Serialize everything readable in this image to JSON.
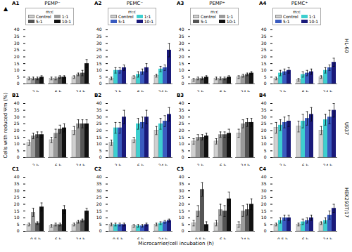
{
  "ylabel": "Cells with reduced Ψm (%)",
  "xlabel": "Microcarrier/cell incubation (h)",
  "annotations": [
    "▲"
  ],
  "chart_data": [
    {
      "type": "bar",
      "title": "PEMP⁻",
      "annotations": [
        "A1"
      ],
      "categories": [
        "2 h",
        "6 h",
        "24 h"
      ],
      "series": [
        {
          "name": "Control",
          "color": "#d0d0d0",
          "values": [
            4,
            4,
            5
          ],
          "errors": [
            1,
            1,
            1
          ]
        },
        {
          "name": "1:1",
          "color": "#9a9a9a",
          "values": [
            4,
            4,
            7
          ],
          "errors": [
            1,
            1,
            1
          ]
        },
        {
          "name": "5:1",
          "color": "#555555",
          "values": [
            4,
            5,
            8
          ],
          "errors": [
            1,
            1,
            2
          ]
        },
        {
          "name": "10:1",
          "color": "#111111",
          "values": [
            5,
            5,
            15
          ],
          "errors": [
            1,
            1,
            3
          ]
        }
      ],
      "ylim": [
        0,
        40
      ],
      "yticks": [
        0,
        5,
        10,
        15,
        20,
        25,
        30,
        35,
        40
      ],
      "grid": false,
      "legend": "upper left",
      "legend_title": "m:c"
    },
    {
      "type": "bar",
      "title": "PEMC⁻",
      "annotations": [
        "A2"
      ],
      "categories": [
        "2 h",
        "6 h",
        "24 h"
      ],
      "series": [
        {
          "name": "Control",
          "color": "#d0d0d0",
          "values": [
            4,
            5,
            6
          ],
          "errors": [
            1,
            1,
            1
          ]
        },
        {
          "name": "1:1",
          "color": "#3ecfcf",
          "values": [
            10,
            7,
            11
          ],
          "errors": [
            2,
            2,
            2
          ]
        },
        {
          "name": "5:1",
          "color": "#3a5bbf",
          "values": [
            10,
            9,
            12
          ],
          "errors": [
            2,
            2,
            2
          ]
        },
        {
          "name": "10:1",
          "color": "#1a1a7a",
          "values": [
            12,
            12,
            25
          ],
          "errors": [
            2,
            3,
            5
          ]
        }
      ],
      "ylim": [
        0,
        40
      ],
      "yticks": [
        0,
        5,
        10,
        15,
        20,
        25,
        30,
        35,
        40
      ],
      "grid": false,
      "legend": "upper left",
      "legend_title": "m:c"
    },
    {
      "type": "bar",
      "title": "PEMP⁺",
      "annotations": [
        "A3"
      ],
      "categories": [
        "2 h",
        "6 h",
        "24 h"
      ],
      "series": [
        {
          "name": "Control",
          "color": "#d0d0d0",
          "values": [
            3,
            4,
            5
          ],
          "errors": [
            1,
            1,
            1
          ]
        },
        {
          "name": "1:1",
          "color": "#9a9a9a",
          "values": [
            4,
            4,
            6
          ],
          "errors": [
            1,
            1,
            1
          ]
        },
        {
          "name": "5:1",
          "color": "#555555",
          "values": [
            4,
            4,
            7
          ],
          "errors": [
            1,
            1,
            1
          ]
        },
        {
          "name": "10:1",
          "color": "#111111",
          "values": [
            5,
            5,
            8
          ],
          "errors": [
            1,
            1,
            1
          ]
        }
      ],
      "ylim": [
        0,
        40
      ],
      "yticks": [
        0,
        5,
        10,
        15,
        20,
        25,
        30,
        35,
        40
      ],
      "grid": false,
      "legend": "upper left",
      "legend_title": "m:c"
    },
    {
      "type": "bar",
      "title": "PEMC⁺",
      "annotations": [
        "A4",
        "HL-60"
      ],
      "categories": [
        "2 h",
        "6 h",
        "24 h"
      ],
      "series": [
        {
          "name": "Control",
          "color": "#d0d0d0",
          "values": [
            4,
            3,
            5
          ],
          "errors": [
            1,
            1,
            1
          ]
        },
        {
          "name": "1:1",
          "color": "#3ecfcf",
          "values": [
            8,
            7,
            10
          ],
          "errors": [
            2,
            2,
            2
          ]
        },
        {
          "name": "5:1",
          "color": "#3a5bbf",
          "values": [
            9,
            8,
            12
          ],
          "errors": [
            2,
            2,
            2
          ]
        },
        {
          "name": "10:1",
          "color": "#1a1a7a",
          "values": [
            10,
            9,
            16
          ],
          "errors": [
            2,
            2,
            3
          ]
        }
      ],
      "ylim": [
        0,
        40
      ],
      "yticks": [
        0,
        5,
        10,
        15,
        20,
        25,
        30,
        35,
        40
      ],
      "grid": false,
      "legend": "upper left",
      "legend_title": "m:c"
    },
    {
      "type": "bar",
      "annotations": [
        "B1"
      ],
      "categories": [
        "2 h",
        "6 h",
        "24 h"
      ],
      "series": [
        {
          "name": "Control",
          "color": "#d0d0d0",
          "values": [
            11,
            13,
            20
          ],
          "errors": [
            2,
            2,
            3
          ]
        },
        {
          "name": "1:1",
          "color": "#9a9a9a",
          "values": [
            16,
            18,
            25
          ],
          "errors": [
            2,
            3,
            3
          ]
        },
        {
          "name": "5:1",
          "color": "#555555",
          "values": [
            17,
            21,
            25
          ],
          "errors": [
            2,
            3,
            3
          ]
        },
        {
          "name": "10:1",
          "color": "#111111",
          "values": [
            17,
            22,
            25
          ],
          "errors": [
            2,
            3,
            3
          ]
        }
      ],
      "ylim": [
        0,
        40
      ],
      "yticks": [
        0,
        5,
        10,
        15,
        20,
        25,
        30,
        35,
        40
      ],
      "grid": false
    },
    {
      "type": "bar",
      "annotations": [
        "B2"
      ],
      "categories": [
        "2 h",
        "6 h",
        "24 h"
      ],
      "series": [
        {
          "name": "Control",
          "color": "#d0d0d0",
          "values": [
            11,
            13,
            20
          ],
          "errors": [
            2,
            2,
            3
          ]
        },
        {
          "name": "1:1",
          "color": "#3ecfcf",
          "values": [
            22,
            25,
            25
          ],
          "errors": [
            4,
            4,
            4
          ]
        },
        {
          "name": "5:1",
          "color": "#3a5bbf",
          "values": [
            22,
            26,
            27
          ],
          "errors": [
            4,
            4,
            4
          ]
        },
        {
          "name": "10:1",
          "color": "#1a1a7a",
          "values": [
            30,
            30,
            32
          ],
          "errors": [
            5,
            5,
            5
          ]
        }
      ],
      "ylim": [
        0,
        40
      ],
      "yticks": [
        0,
        5,
        10,
        15,
        20,
        25,
        30,
        35,
        40
      ],
      "grid": false
    },
    {
      "type": "bar",
      "annotations": [
        "B3"
      ],
      "categories": [
        "2 h",
        "6 h",
        "24 h"
      ],
      "series": [
        {
          "name": "Control",
          "color": "#d0d0d0",
          "values": [
            12,
            12,
            18
          ],
          "errors": [
            2,
            2,
            3
          ]
        },
        {
          "name": "1:1",
          "color": "#9a9a9a",
          "values": [
            15,
            17,
            25
          ],
          "errors": [
            2,
            2,
            3
          ]
        },
        {
          "name": "5:1",
          "color": "#555555",
          "values": [
            15,
            17,
            26
          ],
          "errors": [
            2,
            2,
            3
          ]
        },
        {
          "name": "10:1",
          "color": "#111111",
          "values": [
            16,
            18,
            26
          ],
          "errors": [
            2,
            3,
            3
          ]
        }
      ],
      "ylim": [
        0,
        40
      ],
      "yticks": [
        0,
        5,
        10,
        15,
        20,
        25,
        30,
        35,
        40
      ],
      "grid": false
    },
    {
      "type": "bar",
      "annotations": [
        "B4",
        "U937"
      ],
      "categories": [
        "2 h",
        "6 h",
        "24 h"
      ],
      "series": [
        {
          "name": "Control",
          "color": "#d0d0d0",
          "values": [
            22,
            23,
            20
          ],
          "errors": [
            4,
            4,
            3
          ]
        },
        {
          "name": "1:1",
          "color": "#3ecfcf",
          "values": [
            24,
            27,
            28
          ],
          "errors": [
            4,
            5,
            4
          ]
        },
        {
          "name": "5:1",
          "color": "#3a5bbf",
          "values": [
            26,
            29,
            30
          ],
          "errors": [
            4,
            5,
            5
          ]
        },
        {
          "name": "10:1",
          "color": "#1a1a7a",
          "values": [
            27,
            32,
            35
          ],
          "errors": [
            4,
            5,
            5
          ]
        }
      ],
      "ylim": [
        0,
        40
      ],
      "yticks": [
        0,
        5,
        10,
        15,
        20,
        25,
        30,
        35,
        40
      ],
      "grid": false
    },
    {
      "type": "bar",
      "annotations": [
        "C1"
      ],
      "categories": [
        "0.5 h",
        "6 h",
        "24 h"
      ],
      "series": [
        {
          "name": "Control",
          "color": "#d0d0d0",
          "values": [
            5,
            4,
            5
          ],
          "errors": [
            1,
            1,
            1
          ]
        },
        {
          "name": "1:1",
          "color": "#9a9a9a",
          "values": [
            14,
            5,
            7
          ],
          "errors": [
            3,
            1,
            1
          ]
        },
        {
          "name": "5:1",
          "color": "#555555",
          "values": [
            6,
            5,
            8
          ],
          "errors": [
            1,
            1,
            1
          ]
        },
        {
          "name": "10:1",
          "color": "#111111",
          "values": [
            18,
            16,
            15
          ],
          "errors": [
            3,
            3,
            2
          ]
        }
      ],
      "ylim": [
        0,
        40
      ],
      "yticks": [
        0,
        5,
        10,
        15,
        20,
        25,
        30,
        35,
        40
      ],
      "grid": false
    },
    {
      "type": "bar",
      "annotations": [
        "C2"
      ],
      "categories": [
        "0.5 h",
        "6 h",
        "24 h"
      ],
      "series": [
        {
          "name": "Control",
          "color": "#d0d0d0",
          "values": [
            5,
            4,
            5
          ],
          "errors": [
            1,
            1,
            1
          ]
        },
        {
          "name": "1:1",
          "color": "#3ecfcf",
          "values": [
            5,
            4,
            6
          ],
          "errors": [
            1,
            1,
            1
          ]
        },
        {
          "name": "5:1",
          "color": "#3a5bbf",
          "values": [
            5,
            4,
            7
          ],
          "errors": [
            1,
            1,
            1
          ]
        },
        {
          "name": "10:1",
          "color": "#1a1a7a",
          "values": [
            5,
            5,
            8
          ],
          "errors": [
            1,
            1,
            1
          ]
        }
      ],
      "ylim": [
        0,
        40
      ],
      "yticks": [
        0,
        5,
        10,
        15,
        20,
        25,
        30,
        35,
        40
      ],
      "grid": false
    },
    {
      "type": "bar",
      "annotations": [
        "C3"
      ],
      "categories": [
        "0.5 h",
        "6 h",
        "24 h"
      ],
      "series": [
        {
          "name": "Control",
          "color": "#d0d0d0",
          "values": [
            6,
            6,
            5
          ],
          "errors": [
            2,
            2,
            2
          ]
        },
        {
          "name": "1:1",
          "color": "#9a9a9a",
          "values": [
            15,
            16,
            15
          ],
          "errors": [
            4,
            4,
            4
          ]
        },
        {
          "name": "5:1",
          "color": "#555555",
          "values": [
            31,
            15,
            16
          ],
          "errors": [
            5,
            4,
            4
          ]
        },
        {
          "name": "10:1",
          "color": "#111111",
          "values": [
            5,
            24,
            20
          ],
          "errors": [
            2,
            5,
            4
          ]
        }
      ],
      "ylim": [
        0,
        40
      ],
      "yticks": [
        0,
        5,
        10,
        15,
        20,
        25,
        30,
        35,
        40
      ],
      "grid": false
    },
    {
      "type": "bar",
      "annotations": [
        "C4",
        "HEK293T/17"
      ],
      "categories": [
        "0.5 h",
        "6 h",
        "24 h"
      ],
      "series": [
        {
          "name": "Control",
          "color": "#d0d0d0",
          "values": [
            5,
            5,
            6
          ],
          "errors": [
            1,
            1,
            1
          ]
        },
        {
          "name": "1:1",
          "color": "#3ecfcf",
          "values": [
            8,
            7,
            8
          ],
          "errors": [
            2,
            2,
            2
          ]
        },
        {
          "name": "5:1",
          "color": "#3a5bbf",
          "values": [
            10,
            8,
            12
          ],
          "errors": [
            2,
            2,
            3
          ]
        },
        {
          "name": "10:1",
          "color": "#1a1a7a",
          "values": [
            10,
            10,
            17
          ],
          "errors": [
            2,
            2,
            3
          ]
        }
      ],
      "ylim": [
        0,
        40
      ],
      "yticks": [
        0,
        5,
        10,
        15,
        20,
        25,
        30,
        35,
        40
      ],
      "grid": false
    }
  ]
}
